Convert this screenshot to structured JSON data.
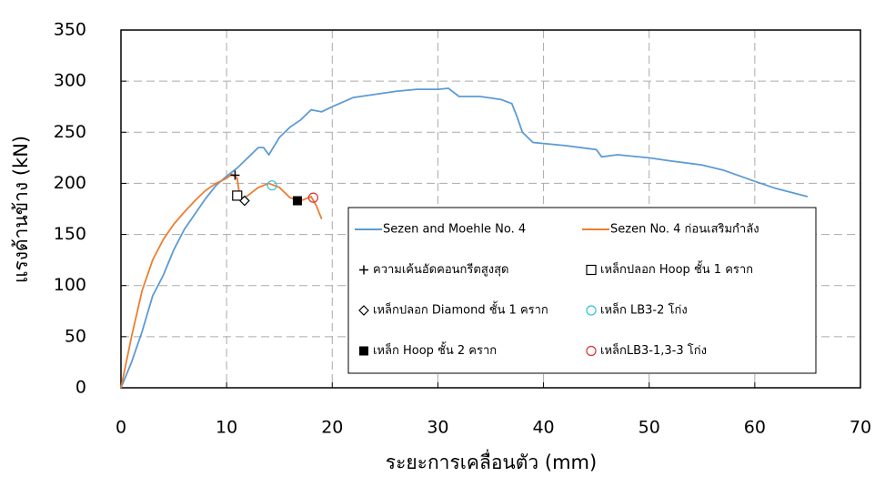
{
  "chart_data": {
    "type": "line",
    "xlabel": "ระยะการเคลื่อนตัว (mm)",
    "ylabel": "แรงด้านข้าง (kN)",
    "xlim": [
      0,
      70
    ],
    "xticks": [
      0,
      10,
      20,
      30,
      40,
      50,
      60,
      70
    ],
    "ylim": [
      0,
      350
    ],
    "yticks": [
      0,
      50,
      100,
      150,
      200,
      250,
      300,
      350
    ],
    "grid": true,
    "series": [
      {
        "name": "Sezen and Moehle No. 4",
        "color": "#5b9bd5",
        "style": "line",
        "x": [
          0,
          1,
          2,
          3,
          4,
          5,
          6,
          7,
          8,
          9,
          10,
          11,
          12,
          13,
          13.5,
          14,
          15,
          16,
          17,
          18,
          19,
          20,
          22,
          24,
          26,
          28,
          30,
          31,
          32,
          34,
          36,
          37,
          37.5,
          38,
          39,
          42,
          45,
          45.5,
          47,
          50,
          52,
          55,
          57,
          60,
          62,
          65
        ],
        "values": [
          0,
          25,
          55,
          90,
          110,
          135,
          155,
          170,
          185,
          198,
          207,
          215,
          225,
          235,
          235,
          228,
          245,
          255,
          262,
          272,
          270,
          275,
          284,
          287,
          290,
          292,
          292,
          293,
          285,
          285,
          282,
          278,
          265,
          250,
          240,
          237,
          233,
          226,
          228,
          225,
          222,
          218,
          213,
          202,
          195,
          187
        ]
      },
      {
        "name": "Sezen No. 4 ก่อนเสริมกำลัง",
        "color": "#ed7d31",
        "style": "line",
        "x": [
          0,
          1,
          2,
          3,
          4,
          5,
          6,
          7,
          8,
          9,
          10,
          10.5,
          11,
          11.2,
          11.5,
          12,
          13,
          14,
          15,
          16,
          17,
          18,
          18.5,
          19
        ],
        "values": [
          0,
          50,
          95,
          125,
          145,
          160,
          172,
          183,
          193,
          200,
          205,
          209,
          205,
          190,
          185,
          188,
          196,
          200,
          196,
          186,
          183,
          187,
          178,
          165
        ]
      },
      {
        "name": "ความเค้นอัดคอนกรีตสูงสุด",
        "color": "#000000",
        "style": "plus",
        "x": [
          10.8
        ],
        "values": [
          208
        ]
      },
      {
        "name": "เหล็กปลอก Hoop ชั้น 1 คราก",
        "color": "#000000",
        "style": "square-open",
        "x": [
          11
        ],
        "values": [
          188
        ]
      },
      {
        "name": "เหล็กปลอก Diamond ชั้น 1 คราก",
        "color": "#000000",
        "style": "diamond-open",
        "x": [
          11.7
        ],
        "values": [
          183
        ]
      },
      {
        "name": "เหล็ก LB3-2 โก่ง",
        "color": "#2ec4dc",
        "style": "circle-open",
        "x": [
          14.3
        ],
        "values": [
          198
        ]
      },
      {
        "name": "เหล็ก Hoop ชั้น 2 คราก",
        "color": "#000000",
        "style": "square-filled",
        "x": [
          16.7
        ],
        "values": [
          183
        ]
      },
      {
        "name": "เหล็กLB3-1,3-3 โก่ง",
        "color": "#e03030",
        "style": "circle-open",
        "x": [
          18.2
        ],
        "values": [
          186
        ]
      }
    ]
  }
}
